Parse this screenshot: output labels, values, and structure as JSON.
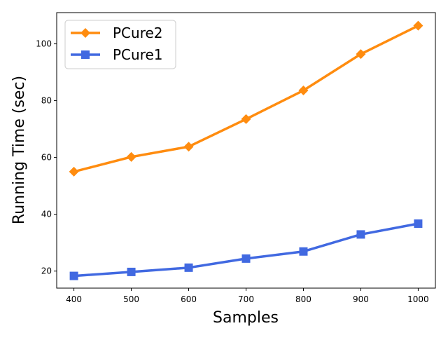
{
  "chart_data": {
    "type": "line",
    "title": "",
    "xlabel": "Samples",
    "ylabel": "Running Time (sec)",
    "x": [
      400,
      500,
      600,
      700,
      800,
      900,
      1000
    ],
    "xlim": [
      370,
      1030
    ],
    "ylim": [
      14,
      111
    ],
    "xticks": [
      400,
      500,
      600,
      700,
      800,
      900,
      1000
    ],
    "yticks": [
      20,
      40,
      60,
      80,
      100
    ],
    "grid": false,
    "legend_position": "top-left",
    "series": [
      {
        "name": "PCure2",
        "color": "#ff8c0f",
        "marker": "diamond",
        "values": [
          55.0,
          60.2,
          63.8,
          73.5,
          83.6,
          96.4,
          106.4
        ]
      },
      {
        "name": "PCure1",
        "color": "#4169e1",
        "marker": "square",
        "values": [
          18.3,
          19.7,
          21.2,
          24.4,
          26.9,
          32.9,
          36.7
        ]
      }
    ]
  }
}
